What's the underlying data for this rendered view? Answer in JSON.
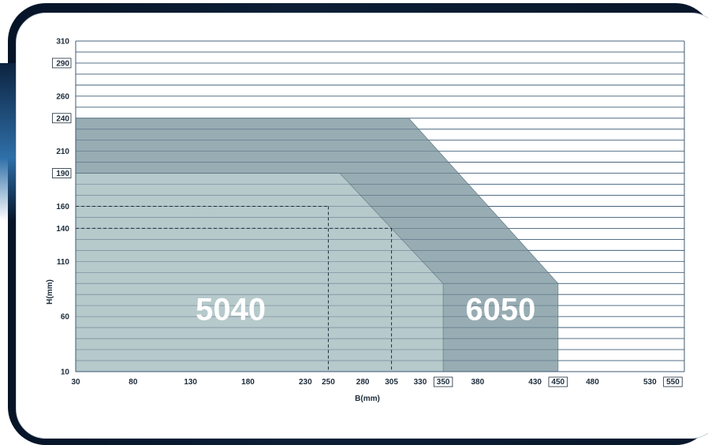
{
  "chart_data": {
    "type": "area",
    "xlabel": "B(mm)",
    "ylabel": "H(mm)",
    "xlim": [
      30,
      560
    ],
    "ylim": [
      10,
      310
    ],
    "x_ticks": [
      {
        "value": 30,
        "label": "30",
        "boxed": false
      },
      {
        "value": 80,
        "label": "80",
        "boxed": false
      },
      {
        "value": 130,
        "label": "130",
        "boxed": false
      },
      {
        "value": 180,
        "label": "180",
        "boxed": false
      },
      {
        "value": 230,
        "label": "230",
        "boxed": false
      },
      {
        "value": 250,
        "label": "250",
        "boxed": false
      },
      {
        "value": 280,
        "label": "280",
        "boxed": false
      },
      {
        "value": 305,
        "label": "305",
        "boxed": false
      },
      {
        "value": 330,
        "label": "330",
        "boxed": false
      },
      {
        "value": 350,
        "label": "350",
        "boxed": true
      },
      {
        "value": 380,
        "label": "380",
        "boxed": false
      },
      {
        "value": 430,
        "label": "430",
        "boxed": false
      },
      {
        "value": 450,
        "label": "450",
        "boxed": true
      },
      {
        "value": 480,
        "label": "480",
        "boxed": false
      },
      {
        "value": 530,
        "label": "530",
        "boxed": false
      },
      {
        "value": 550,
        "label": "550",
        "boxed": true
      }
    ],
    "y_ticks": [
      {
        "value": 10,
        "label": "10",
        "boxed": false
      },
      {
        "value": 60,
        "label": "60",
        "boxed": false
      },
      {
        "value": 110,
        "label": "110",
        "boxed": false
      },
      {
        "value": 140,
        "label": "140",
        "boxed": false
      },
      {
        "value": 160,
        "label": "160",
        "boxed": false
      },
      {
        "value": 190,
        "label": "190",
        "boxed": true
      },
      {
        "value": 210,
        "label": "210",
        "boxed": false
      },
      {
        "value": 240,
        "label": "240",
        "boxed": true
      },
      {
        "value": 260,
        "label": "260",
        "boxed": false
      },
      {
        "value": 290,
        "label": "290",
        "boxed": true
      },
      {
        "value": 310,
        "label": "310",
        "boxed": false
      }
    ],
    "grid_y_step": 10,
    "series": [
      {
        "name": "6050",
        "color": "#8fa6ac",
        "polygon": [
          [
            30,
            10
          ],
          [
            450,
            10
          ],
          [
            450,
            90
          ],
          [
            320,
            240
          ],
          [
            30,
            240
          ]
        ]
      },
      {
        "name": "5040",
        "color": "#b9cbcd",
        "polygon": [
          [
            30,
            10
          ],
          [
            350,
            10
          ],
          [
            350,
            90
          ],
          [
            260,
            190
          ],
          [
            30,
            190
          ]
        ]
      }
    ],
    "series_label_positions": [
      {
        "name": "5040",
        "x": 165,
        "y": 67
      },
      {
        "name": "6050",
        "x": 400,
        "y": 67
      }
    ],
    "reference_lines": [
      {
        "h": 160,
        "b": 250
      },
      {
        "h": 140,
        "b": 305
      }
    ]
  }
}
